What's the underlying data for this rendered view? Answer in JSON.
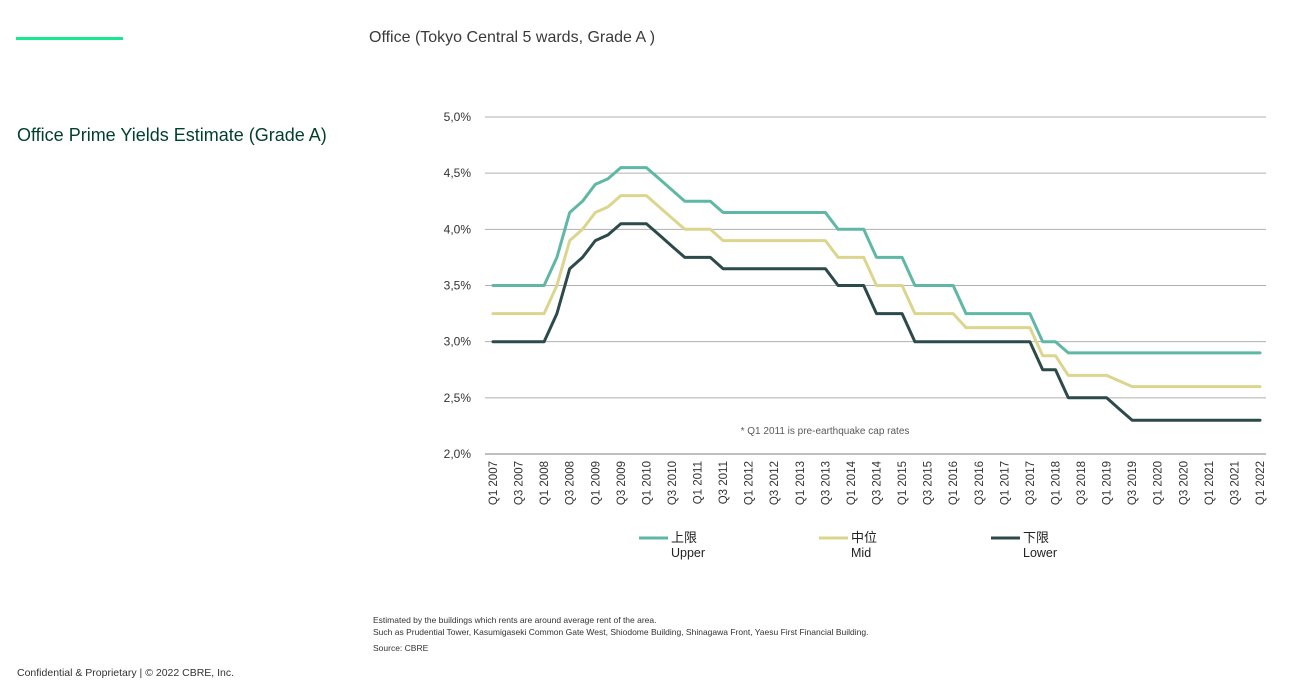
{
  "header": {
    "title": "Office (Tokyo Central 5 wards, Grade A )",
    "accent_color": "#17e88f"
  },
  "chart_heading": "Office Prime Yields Estimate (Grade A)",
  "chart_data": {
    "type": "line",
    "title": "",
    "xlabel": "",
    "ylabel": "",
    "ylim": [
      2.0,
      5.0
    ],
    "y_ticks": [
      "2,0%",
      "2,5%",
      "3,0%",
      "3,5%",
      "4,0%",
      "4,5%",
      "5,0%"
    ],
    "y_tick_values": [
      2.0,
      2.5,
      3.0,
      3.5,
      4.0,
      4.5,
      5.0
    ],
    "grid": true,
    "legend_position": "bottom",
    "x_tick_labels": [
      "Q1 2007",
      "Q3 2007",
      "Q1 2008",
      "Q3 2008",
      "Q1 2009",
      "Q3 2009",
      "Q1 2010",
      "Q3 2010",
      "Q1 2011",
      "Q3 2011",
      "Q1 2012",
      "Q3 2012",
      "Q1 2013",
      "Q3 2013",
      "Q1 2014",
      "Q3 2014",
      "Q1 2015",
      "Q3 2015",
      "Q1 2016",
      "Q3 2016",
      "Q1 2017",
      "Q3 2017",
      "Q1 2018",
      "Q3 2018",
      "Q1 2019",
      "Q3 2019",
      "Q1 2020",
      "Q3 2020",
      "Q1 2021",
      "Q3 2021",
      "Q1 2022"
    ],
    "x_quarters": [
      "Q1 2007",
      "Q2 2007",
      "Q3 2007",
      "Q4 2007",
      "Q1 2008",
      "Q2 2008",
      "Q3 2008",
      "Q4 2008",
      "Q1 2009",
      "Q2 2009",
      "Q3 2009",
      "Q4 2009",
      "Q1 2010",
      "Q2 2010",
      "Q3 2010",
      "Q4 2010",
      "Q1 2011",
      "Q2 2011",
      "Q3 2011",
      "Q4 2011",
      "Q1 2012",
      "Q2 2012",
      "Q3 2012",
      "Q4 2012",
      "Q1 2013",
      "Q2 2013",
      "Q3 2013",
      "Q4 2013",
      "Q1 2014",
      "Q2 2014",
      "Q3 2014",
      "Q4 2014",
      "Q1 2015",
      "Q2 2015",
      "Q3 2015",
      "Q4 2015",
      "Q1 2016",
      "Q2 2016",
      "Q3 2016",
      "Q4 2016",
      "Q1 2017",
      "Q2 2017",
      "Q3 2017",
      "Q4 2017",
      "Q1 2018",
      "Q2 2018",
      "Q3 2018",
      "Q4 2018",
      "Q1 2019",
      "Q2 2019",
      "Q3 2019",
      "Q4 2019",
      "Q1 2020",
      "Q2 2020",
      "Q3 2020",
      "Q4 2020",
      "Q1 2021",
      "Q2 2021",
      "Q3 2021",
      "Q4 2021",
      "Q1 2022"
    ],
    "series": [
      {
        "name": "上限",
        "name_en": "Upper",
        "color": "#5fb8a6",
        "values": [
          3.5,
          3.5,
          3.5,
          3.5,
          3.5,
          3.75,
          4.15,
          4.25,
          4.4,
          4.45,
          4.55,
          4.55,
          4.55,
          4.45,
          4.35,
          4.25,
          4.25,
          4.25,
          4.15,
          4.15,
          4.15,
          4.15,
          4.15,
          4.15,
          4.15,
          4.15,
          4.15,
          4.0,
          4.0,
          4.0,
          3.75,
          3.75,
          3.75,
          3.5,
          3.5,
          3.5,
          3.5,
          3.25,
          3.25,
          3.25,
          3.25,
          3.25,
          3.25,
          3.0,
          3.0,
          2.9,
          2.9,
          2.9,
          2.9,
          2.9,
          2.9,
          2.9,
          2.9,
          2.9,
          2.9,
          2.9,
          2.9,
          2.9,
          2.9,
          2.9,
          2.9
        ]
      },
      {
        "name": "中位",
        "name_en": "Mid",
        "color": "#dcd58e",
        "values": [
          3.25,
          3.25,
          3.25,
          3.25,
          3.25,
          3.5,
          3.9,
          4.0,
          4.15,
          4.2,
          4.3,
          4.3,
          4.3,
          4.2,
          4.1,
          4.0,
          4.0,
          4.0,
          3.9,
          3.9,
          3.9,
          3.9,
          3.9,
          3.9,
          3.9,
          3.9,
          3.9,
          3.75,
          3.75,
          3.75,
          3.5,
          3.5,
          3.5,
          3.25,
          3.25,
          3.25,
          3.25,
          3.125,
          3.125,
          3.125,
          3.125,
          3.125,
          3.125,
          2.875,
          2.875,
          2.7,
          2.7,
          2.7,
          2.7,
          2.65,
          2.6,
          2.6,
          2.6,
          2.6,
          2.6,
          2.6,
          2.6,
          2.6,
          2.6,
          2.6,
          2.6
        ]
      },
      {
        "name": "下限",
        "name_en": "Lower",
        "color": "#2d4a4a",
        "values": [
          3.0,
          3.0,
          3.0,
          3.0,
          3.0,
          3.25,
          3.65,
          3.75,
          3.9,
          3.95,
          4.05,
          4.05,
          4.05,
          3.95,
          3.85,
          3.75,
          3.75,
          3.75,
          3.65,
          3.65,
          3.65,
          3.65,
          3.65,
          3.65,
          3.65,
          3.65,
          3.65,
          3.5,
          3.5,
          3.5,
          3.25,
          3.25,
          3.25,
          3.0,
          3.0,
          3.0,
          3.0,
          3.0,
          3.0,
          3.0,
          3.0,
          3.0,
          3.0,
          2.75,
          2.75,
          2.5,
          2.5,
          2.5,
          2.5,
          2.4,
          2.3,
          2.3,
          2.3,
          2.3,
          2.3,
          2.3,
          2.3,
          2.3,
          2.3,
          2.3,
          2.3
        ]
      }
    ],
    "annotation": "* Q1 2011 is pre-earthquake cap rates"
  },
  "footnotes": {
    "line1": "Estimated by the buildings which rents are around average rent of the area.",
    "line2": "Such as Prudential Tower, Kasumigaseki Common Gate West, Shiodome Building, Shinagawa Front, Yaesu First Financial Building.",
    "source": "Source: CBRE"
  },
  "footer": {
    "copyright": "Confidential & Proprietary | © 2022 CBRE, Inc."
  },
  "colors": {
    "heading": "#003f2d",
    "gridline": "#b0b0b0",
    "axis": "#7f7f7f"
  }
}
